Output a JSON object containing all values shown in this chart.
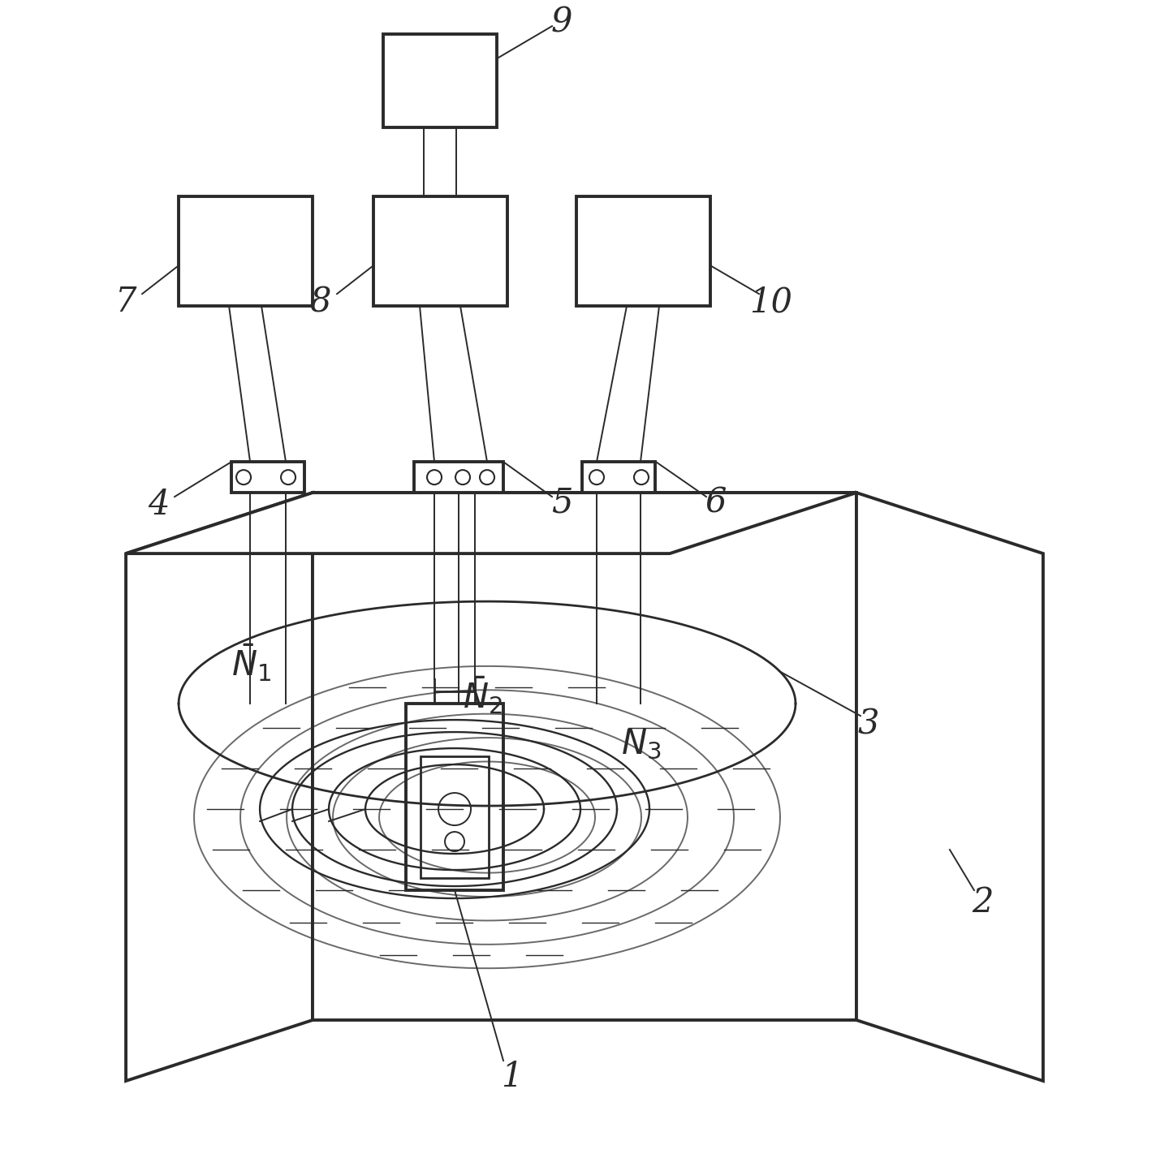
{
  "bg_color": "#ffffff",
  "line_color": "#2a2a2a",
  "fig_width": 14.4,
  "fig_height": 14.27
}
